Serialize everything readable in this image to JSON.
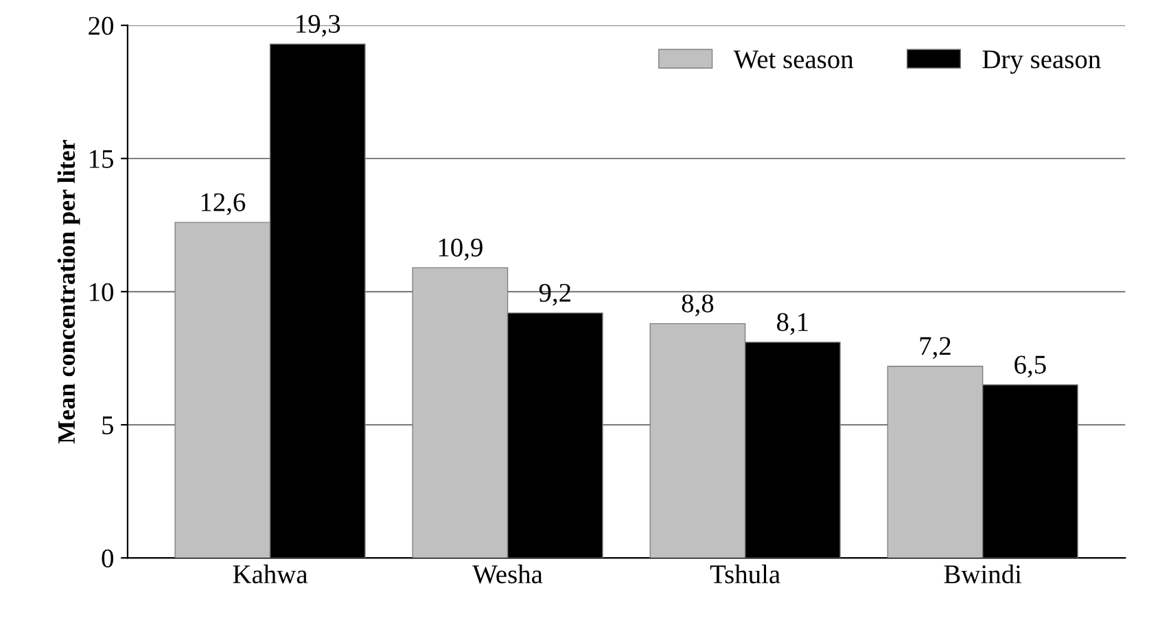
{
  "chart_data": {
    "type": "bar",
    "ylabel": "Mean concentration per liter",
    "categories": [
      "Kahwa",
      "Wesha",
      "Tshula",
      "Bwindi"
    ],
    "series": [
      {
        "name": "Wet season",
        "color": "#c0c0c0",
        "values": [
          12.6,
          10.9,
          8.8,
          7.2
        ],
        "value_labels": [
          "12,6",
          "10,9",
          "8,8",
          "7,2"
        ]
      },
      {
        "name": "Dry season",
        "color": "#000000",
        "values": [
          19.3,
          9.2,
          8.1,
          6.5
        ],
        "value_labels": [
          "19,3",
          "9,2",
          "8,1",
          "6,5"
        ]
      }
    ],
    "ylim": [
      0,
      20
    ],
    "yticks": [
      0,
      5,
      10,
      15,
      20
    ],
    "grid": "y",
    "legend": "top right"
  }
}
